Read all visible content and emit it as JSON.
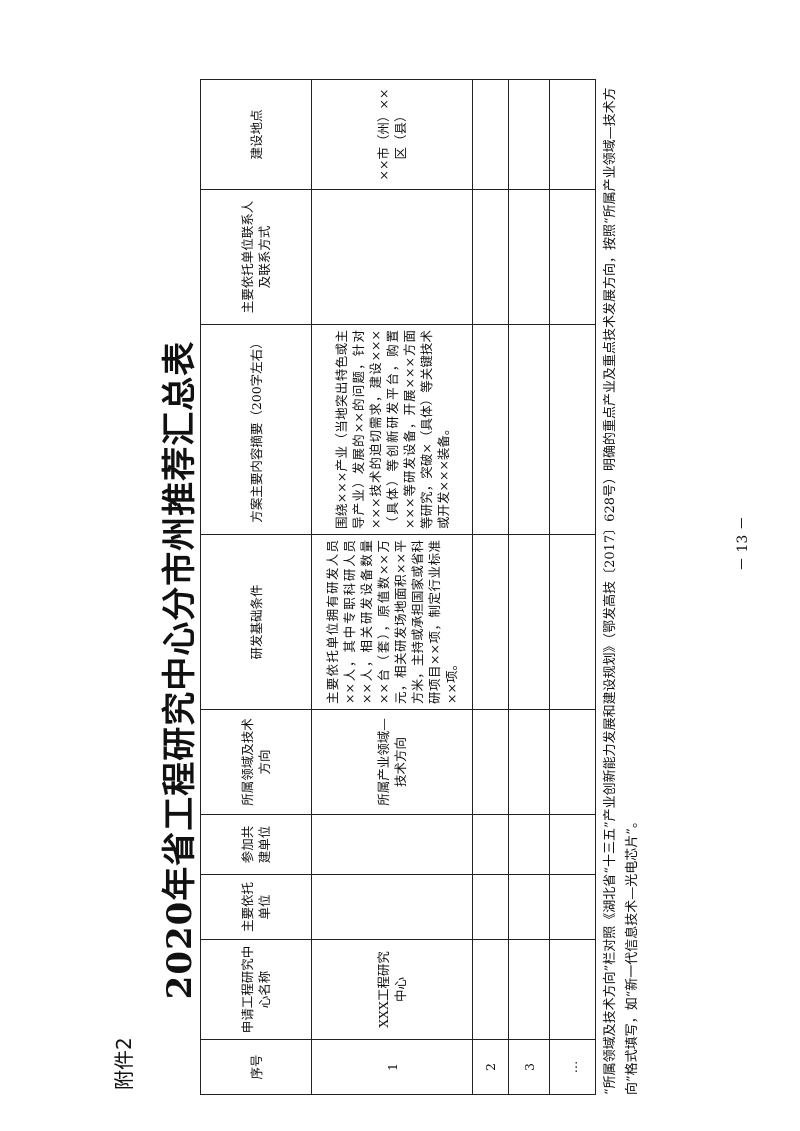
{
  "attachment": "附件2",
  "title": "2020年省工程研究中心分市州推荐汇总表",
  "table": {
    "headers": [
      "序号",
      "申请工程研究中心名称",
      "主要依托单位",
      "参加共建单位",
      "所属领域及技术方向",
      "研发基础条件",
      "方案主要内容摘要（200字左右）",
      "主要依托单位联系人及联系方式",
      "建设地点"
    ],
    "rows": [
      [
        "1",
        "XXX工程研究中心",
        "",
        "",
        "所属产业领域—技术方向",
        "主要依托单位拥有研发人员××人，其中专职科研人员××人，相关研发设备数量××台（套），原值数××万元，相关研发场地面积××平方米，主持或承担国家或省科研项目××项，制定行业标准××项。",
        "围绕×××产业（当地突出特色或主导产业）发展的××的问题，针对×××技术的迫切需求，建设×××（具体）等创新研发平台，购置×××等研发设备，开展×××方面等研究，突破×（具体）等关键技术或开发×××装备。",
        "",
        "××市（州）××区（县）"
      ],
      [
        "2",
        "",
        "",
        "",
        "",
        "",
        "",
        "",
        ""
      ],
      [
        "3",
        "",
        "",
        "",
        "",
        "",
        "",
        "",
        ""
      ],
      [
        "…",
        "",
        "",
        "",
        "",
        "",
        "",
        "",
        ""
      ]
    ]
  },
  "footnote": "“所属领域及技术方向”栏对照《湖北省“十三五”产业创新能力发展和建设规划》（鄂发高技〔2017〕628号）明确的重点产业及重点技术发展方向，按照“所属产业领域—技术方向”格式填写，如“新一代信息技术—光电芯片”。",
  "page_number": "－ 13 －"
}
